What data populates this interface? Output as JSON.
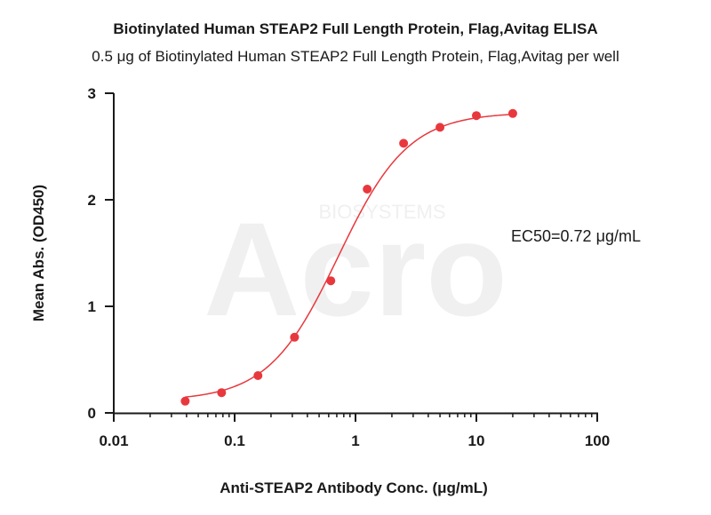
{
  "chart_data": {
    "type": "scatter",
    "title": "Biotinylated Human STEAP2 Full Length Protein, Flag,Avitag ELISA",
    "subtitle": "0.5 μg of Biotinylated Human STEAP2 Full Length Protein, Flag,Avitag per well",
    "xlabel": "Anti-STEAP2 Antibody Conc. (μg/mL)",
    "ylabel": "Mean Abs. (OD450)",
    "xscale": "log",
    "xlim": [
      0.01,
      100
    ],
    "ylim": [
      0,
      3
    ],
    "xticks": [
      "0.01",
      "0.1",
      "1",
      "10",
      "100"
    ],
    "yticks": [
      "0",
      "1",
      "2",
      "3"
    ],
    "annotation": "EC50=0.72 μg/mL",
    "watermark": "Acro",
    "watermark_sub": "BIOSYSTEMS",
    "color": "#e8383d",
    "grid": false,
    "series": [
      {
        "x": [
          0.039,
          0.078,
          0.156,
          0.313,
          0.625,
          1.25,
          2.5,
          5,
          10,
          20
        ],
        "y": [
          0.11,
          0.19,
          0.35,
          0.71,
          1.24,
          2.1,
          2.53,
          2.68,
          2.79,
          2.81
        ]
      }
    ],
    "fit": {
      "model": "4PL",
      "bottom": 0.115,
      "top": 2.82,
      "ec50": 0.72,
      "hill": 1.5
    }
  }
}
